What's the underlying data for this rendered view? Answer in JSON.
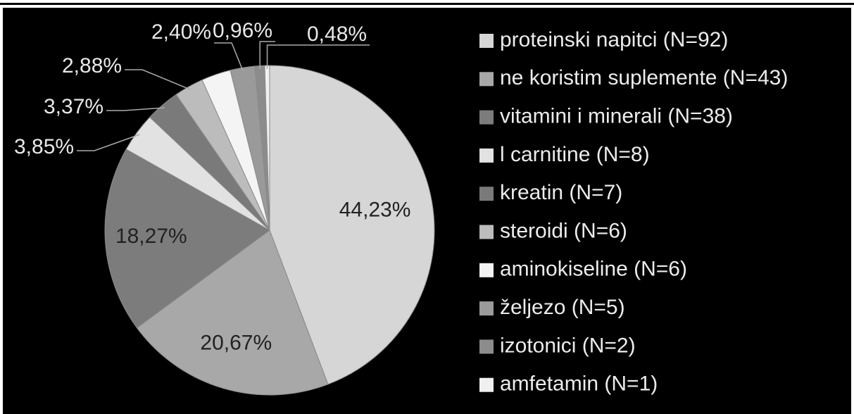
{
  "chart_data": {
    "type": "pie",
    "categories": [
      "proteinski napitci (N=92)",
      "ne koristim suplemente (N=43)",
      "vitamini i minerali (N=38)",
      "l carnitine (N=8)",
      "kreatin (N=7)",
      "steroidi (N=6)",
      "aminokiseline (N=6)",
      "željezo (N=5)",
      "izotonici (N=2)",
      "amfetamin (N=1)"
    ],
    "values": [
      44.23,
      20.67,
      18.27,
      3.85,
      3.37,
      2.88,
      2.88,
      2.4,
      0.96,
      0.48
    ],
    "value_labels": [
      "44,23%",
      "20,67%",
      "18,27%",
      "3,85%",
      "3,37%",
      "2,88%",
      null,
      "2,40%",
      "0,96%",
      "0,48%"
    ],
    "colors": [
      "#d6d6d6",
      "#a8a8a8",
      "#7c7c7c",
      "#e2e2e2",
      "#7a7a7a",
      "#bcbcbc",
      "#f4f4f4",
      "#9a9a9a",
      "#8c8c8c",
      "#f0f0f0"
    ],
    "legend": "right"
  }
}
